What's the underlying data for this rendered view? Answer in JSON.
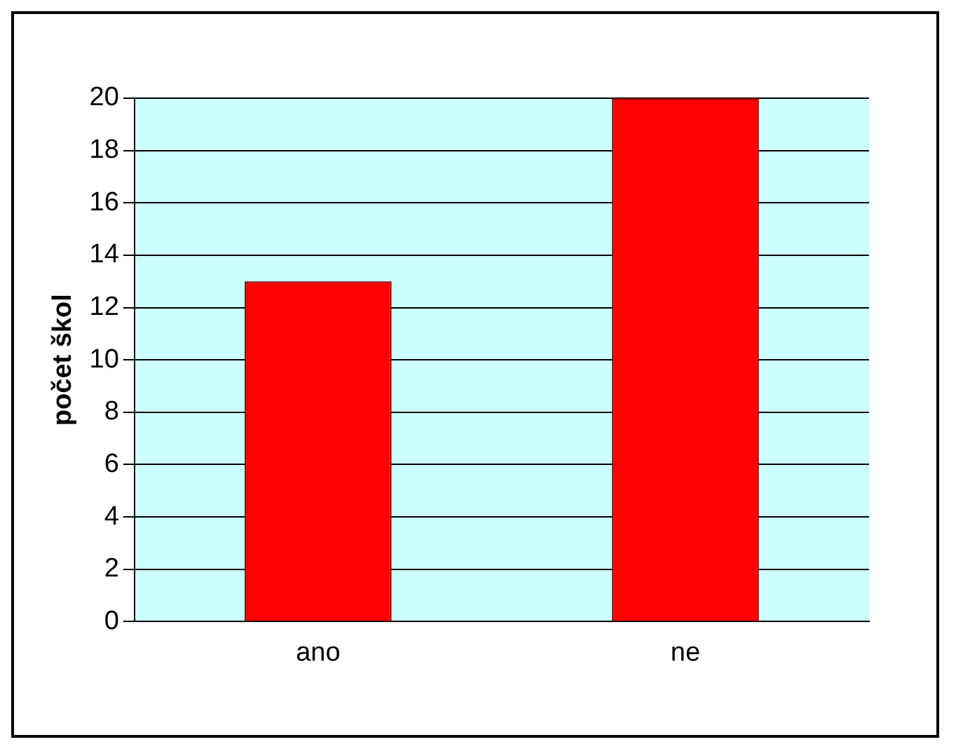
{
  "chart_data": {
    "type": "bar",
    "ylabel": "počet škol",
    "categories": [
      "ano",
      "ne"
    ],
    "values": [
      13,
      20
    ],
    "color": "#ff0000",
    "ylim": [
      0,
      20
    ],
    "yticks": [
      0,
      2,
      4,
      6,
      8,
      10,
      12,
      14,
      16,
      18,
      20
    ],
    "grid": "y",
    "legend": false
  }
}
